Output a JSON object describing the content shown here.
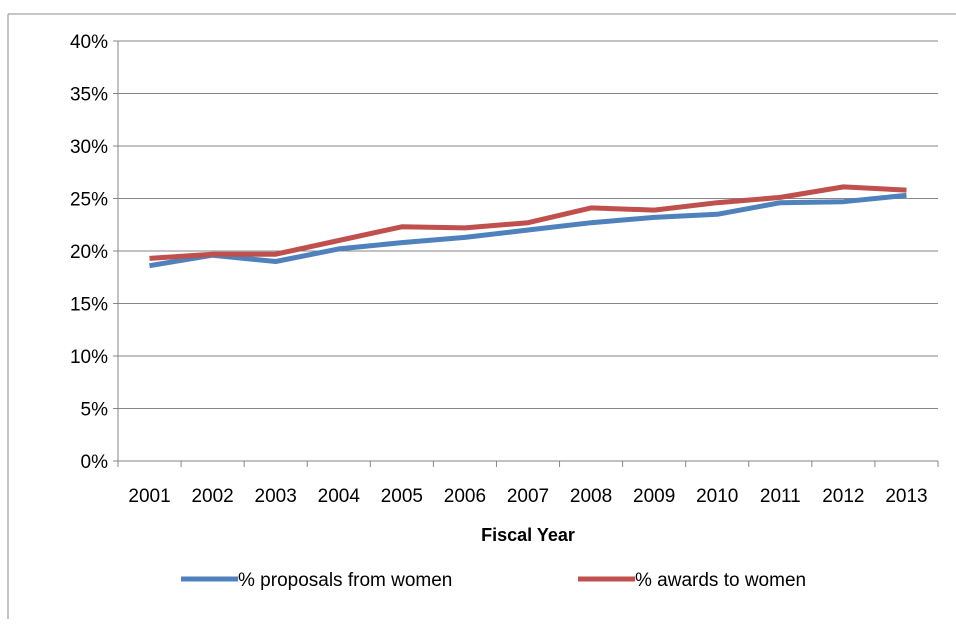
{
  "chart_data": {
    "type": "line",
    "title": "",
    "xlabel": "Fiscal Year",
    "ylabel": "",
    "categories": [
      "2001",
      "2002",
      "2003",
      "2004",
      "2005",
      "2006",
      "2007",
      "2008",
      "2009",
      "2010",
      "2011",
      "2012",
      "2013"
    ],
    "ylim": [
      0,
      40
    ],
    "yticks": [
      0,
      5,
      10,
      15,
      20,
      25,
      30,
      35,
      40
    ],
    "ytick_labels": [
      "0%",
      "5%",
      "10%",
      "15%",
      "20%",
      "25%",
      "30%",
      "35%",
      "40%"
    ],
    "grid": true,
    "legend_position": "bottom",
    "series": [
      {
        "name": "% proposals from women",
        "color": "#4F81BD",
        "values": [
          18.6,
          19.6,
          19.0,
          20.2,
          20.8,
          21.3,
          22.0,
          22.7,
          23.2,
          23.5,
          24.6,
          24.7,
          25.3
        ]
      },
      {
        "name": "% awards to women",
        "color": "#C0504D",
        "values": [
          19.3,
          19.7,
          19.7,
          21.0,
          22.3,
          22.2,
          22.7,
          24.1,
          23.9,
          24.6,
          25.1,
          26.1,
          25.8
        ]
      }
    ]
  }
}
